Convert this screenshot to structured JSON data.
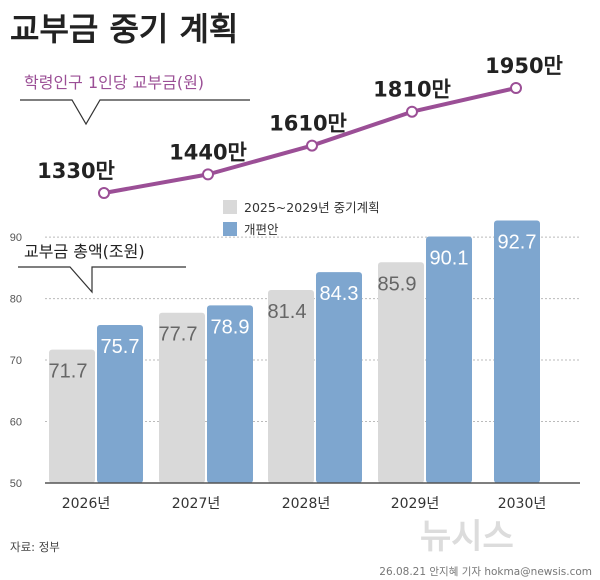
{
  "title": "교부금 중기 계획",
  "source": "자료: 정부",
  "credit": "26.08.21 안지혜 기자 hokma@newsis.com",
  "watermark": "뉴시스",
  "chart_data": [
    {
      "type": "bar",
      "title": "교부금 총액(조원)",
      "categories": [
        "2026년",
        "2027년",
        "2028년",
        "2029년",
        "2030년"
      ],
      "y_ticks": [
        50,
        60,
        70,
        80,
        90
      ],
      "ylim": [
        50,
        94
      ],
      "legend_position": "top",
      "series": [
        {
          "name": "2025~2029년 중기계획",
          "color": "#d9d9d9",
          "values": [
            71.7,
            77.7,
            81.4,
            85.9,
            null
          ],
          "labels": [
            "71.7",
            "77.7",
            "81.4",
            "85.9",
            ""
          ]
        },
        {
          "name": "개편안",
          "color": "#7ea6cf",
          "values": [
            75.7,
            78.9,
            84.3,
            90.1,
            92.7
          ],
          "labels": [
            "75.7",
            "78.9",
            "84.3",
            "90.1",
            "92.7"
          ]
        }
      ]
    },
    {
      "type": "line",
      "title": "학령인구 1인당 교부금(원)",
      "color": "#9b4f96",
      "x": [
        "2026년",
        "2027년",
        "2028년",
        "2029년",
        "2030년"
      ],
      "values": [
        13300000,
        14400000,
        16100000,
        18100000,
        19500000
      ],
      "labels": [
        "1330만",
        "1440만",
        "1610만",
        "1810만",
        "1950만"
      ]
    }
  ]
}
